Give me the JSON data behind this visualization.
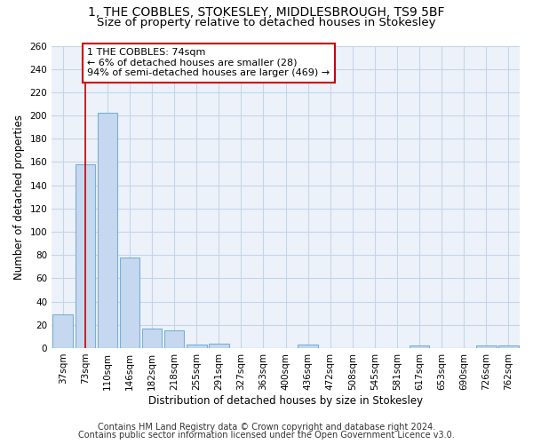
{
  "title1": "1, THE COBBLES, STOKESLEY, MIDDLESBROUGH, TS9 5BF",
  "title2": "Size of property relative to detached houses in Stokesley",
  "xlabel": "Distribution of detached houses by size in Stokesley",
  "ylabel": "Number of detached properties",
  "bar_labels": [
    "37sqm",
    "73sqm",
    "110sqm",
    "146sqm",
    "182sqm",
    "218sqm",
    "255sqm",
    "291sqm",
    "327sqm",
    "363sqm",
    "400sqm",
    "436sqm",
    "472sqm",
    "508sqm",
    "545sqm",
    "581sqm",
    "617sqm",
    "653sqm",
    "690sqm",
    "726sqm",
    "762sqm"
  ],
  "bar_values": [
    29,
    158,
    202,
    78,
    17,
    15,
    3,
    4,
    0,
    0,
    0,
    3,
    0,
    0,
    0,
    0,
    2,
    0,
    0,
    2,
    2
  ],
  "bar_color": "#c5d8f0",
  "bar_edge_color": "#7aafd4",
  "property_line_x": 1.0,
  "annotation_line1": "1 THE COBBLES: 74sqm",
  "annotation_line2": "← 6% of detached houses are smaller (28)",
  "annotation_line3": "94% of semi-detached houses are larger (469) →",
  "annotation_box_color": "white",
  "annotation_box_edge_color": "#cc0000",
  "vline_color": "#cc0000",
  "ylim": [
    0,
    260
  ],
  "yticks": [
    0,
    20,
    40,
    60,
    80,
    100,
    120,
    140,
    160,
    180,
    200,
    220,
    240,
    260
  ],
  "footer1": "Contains HM Land Registry data © Crown copyright and database right 2024.",
  "footer2": "Contains public sector information licensed under the Open Government Licence v3.0.",
  "bg_color": "#edf2fa",
  "grid_color": "#c5d5e8",
  "title1_fontsize": 10,
  "title2_fontsize": 9.5,
  "axis_label_fontsize": 8.5,
  "tick_fontsize": 7.5,
  "footer_fontsize": 7,
  "annotation_fontsize": 8
}
